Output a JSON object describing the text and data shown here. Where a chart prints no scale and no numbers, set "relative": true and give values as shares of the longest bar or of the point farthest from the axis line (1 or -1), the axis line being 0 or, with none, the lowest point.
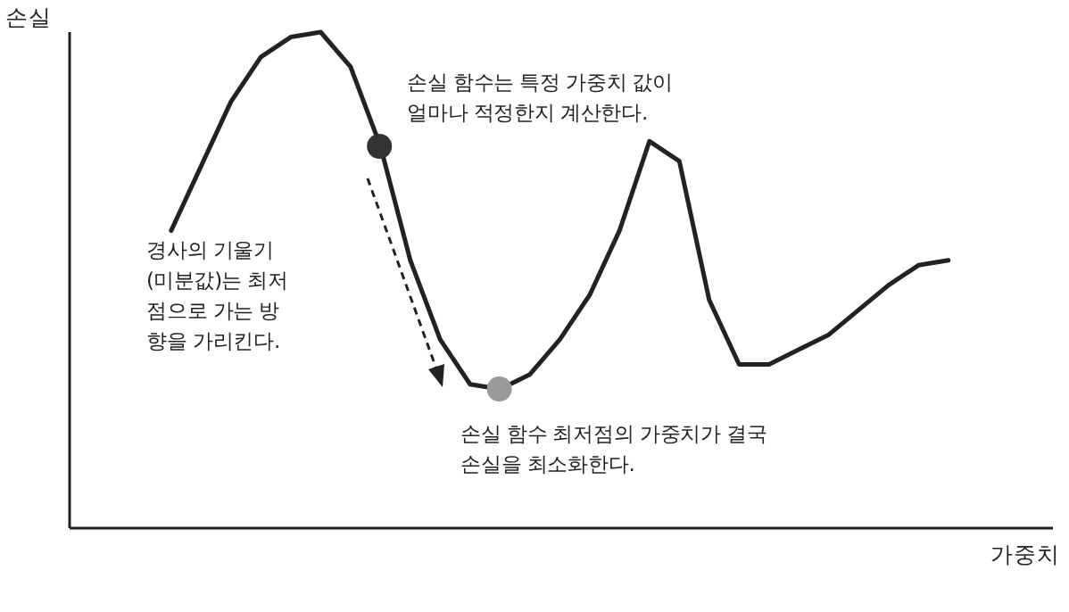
{
  "chart_data": {
    "type": "line",
    "relative": true,
    "xlabel": "가중치",
    "ylabel": "손실",
    "grid": false,
    "legend": false,
    "marker": "none",
    "categories": [
      null,
      null,
      null,
      null,
      null,
      null,
      null,
      null,
      null,
      null,
      null,
      null,
      null,
      null,
      null,
      null,
      null,
      null,
      null,
      null,
      null,
      null,
      null,
      null,
      null,
      null,
      null
    ],
    "series": [
      {
        "color": "#222222",
        "values": [
          0.6,
          0.73,
          0.86,
          0.95,
          0.99,
          1,
          0.93,
          0.77,
          0.54,
          0.38,
          0.29,
          0.28,
          0.31,
          0.38,
          0.47,
          0.6,
          0.78,
          0.74,
          0.46,
          0.33,
          0.33,
          0.36,
          0.39,
          0.44,
          0.49,
          0.53,
          0.54
        ]
      }
    ],
    "annotations": [
      "손실 함수는 특정 가중치 값이\n얼마나 적정한지 계산한다.",
      "경사의 기울기\n(미분값)는 최저\n점으로 가는 방\n향을 가리킨다.",
      "손실 함수 최저점의 가중치가 결국\n손실을 최소화한다."
    ]
  }
}
